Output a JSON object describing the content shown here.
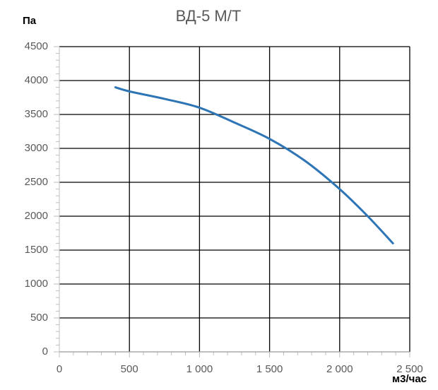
{
  "chart_data": {
    "type": "line",
    "title": "ВД-5 М/Т",
    "y_label": "Па",
    "x_label": "м3/час",
    "x": [
      400,
      500,
      750,
      1000,
      1250,
      1500,
      1750,
      2000,
      2200,
      2380
    ],
    "series": [
      {
        "color": "#2e75b6",
        "values": [
          3900,
          3840,
          3730,
          3600,
          3380,
          3140,
          2820,
          2400,
          2000,
          1600
        ]
      }
    ],
    "xlim": [
      0,
      2500
    ],
    "xticks": [
      0,
      500,
      {
        "value": 1000,
        "label": "1 000"
      },
      {
        "value": 1500,
        "label": "1 500"
      },
      {
        "value": 2000,
        "label": "2 000"
      },
      {
        "value": 2500,
        "label": "2 500"
      }
    ],
    "ylim": [
      0,
      4500
    ],
    "yticks": [
      0,
      500,
      1000,
      1500,
      2000,
      2500,
      3000,
      3500,
      4000,
      4500
    ],
    "grid": true
  }
}
